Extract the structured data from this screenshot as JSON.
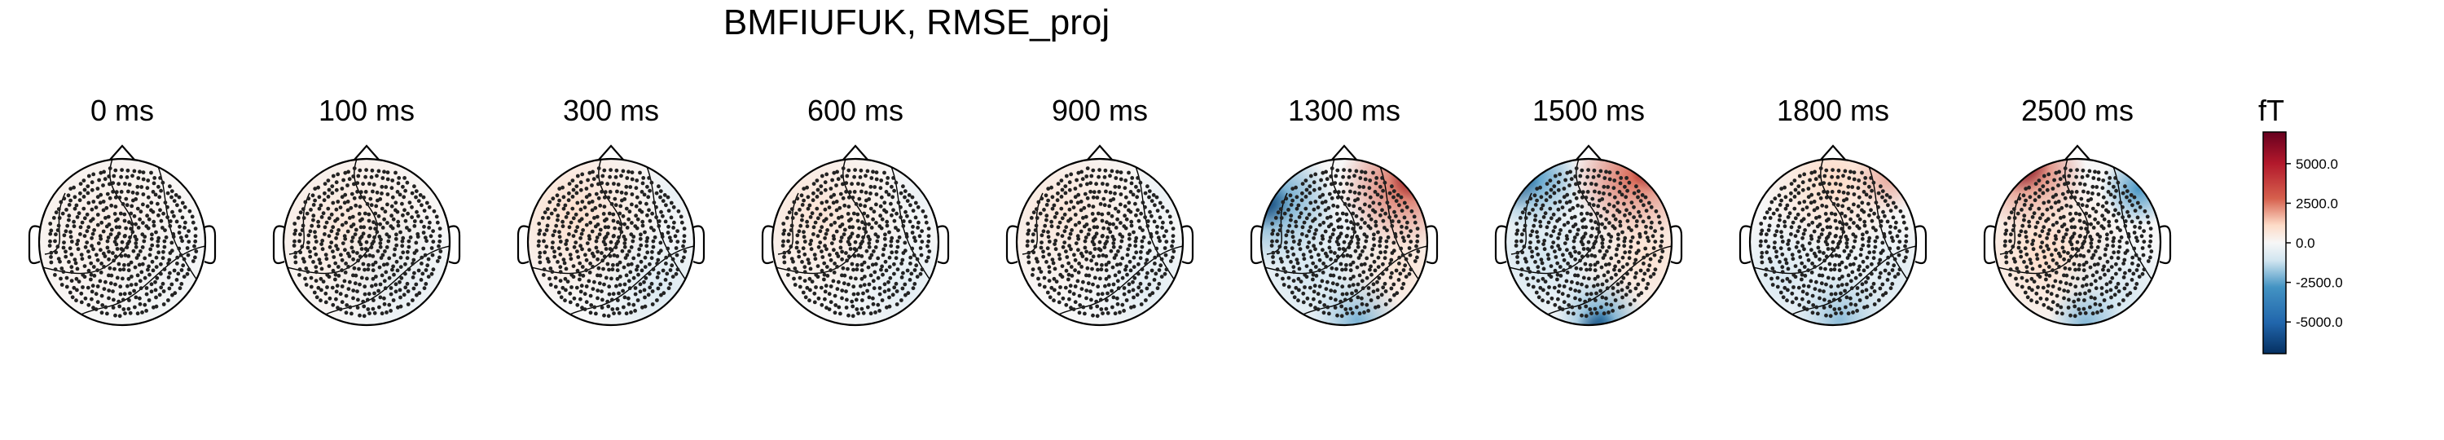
{
  "figure": {
    "title": "BMFIUFUK, RMSE_proj"
  },
  "chart_data": {
    "type": "heatmap",
    "subtype": "topomap",
    "title": "BMFIUFUK, RMSE_proj",
    "panels": [
      {
        "label": "0 ms",
        "time_ms": 0,
        "pattern": "flat",
        "pos_strength": 0.1,
        "neg_strength": 0.05
      },
      {
        "label": "100 ms",
        "time_ms": 100,
        "pattern": "flat",
        "pos_strength": 0.15,
        "neg_strength": 0.12
      },
      {
        "label": "300 ms",
        "time_ms": 300,
        "pattern": "weak",
        "pos_strength": 0.25,
        "neg_strength": 0.2
      },
      {
        "label": "600 ms",
        "time_ms": 600,
        "pattern": "weak",
        "pos_strength": 0.2,
        "neg_strength": 0.15
      },
      {
        "label": "900 ms",
        "time_ms": 900,
        "pattern": "weak",
        "pos_strength": 0.18,
        "neg_strength": 0.15
      },
      {
        "label": "1300 ms",
        "time_ms": 1300,
        "pattern": "strong",
        "pos_strength": 0.85,
        "neg_strength": 0.75
      },
      {
        "label": "1500 ms",
        "time_ms": 1500,
        "pattern": "strong",
        "pos_strength": 0.8,
        "neg_strength": 0.8
      },
      {
        "label": "1800 ms",
        "time_ms": 1800,
        "pattern": "moderate",
        "pos_strength": 0.3,
        "neg_strength": 0.3
      },
      {
        "label": "2500 ms",
        "time_ms": 2500,
        "pattern": "frontal",
        "pos_strength": 0.95,
        "neg_strength": 0.55
      }
    ],
    "colorbar": {
      "unit": "fT",
      "min": -7000,
      "max": 7000,
      "ticks": [
        5000,
        2500,
        0,
        -2500,
        -5000
      ],
      "tick_labels": [
        "5000.0",
        "2500.0",
        "0.0",
        "-2500.0",
        "-5000.0"
      ],
      "colormap": "RdBu_r"
    },
    "colors": {
      "neg_max": "#053061",
      "neg_mid": "#4393c3",
      "neg_low": "#d1e5f0",
      "zero": "#f7f7f7",
      "pos_low": "#fddbc7",
      "pos_mid": "#d6604d",
      "pos_max": "#67001f"
    },
    "grid": false
  }
}
